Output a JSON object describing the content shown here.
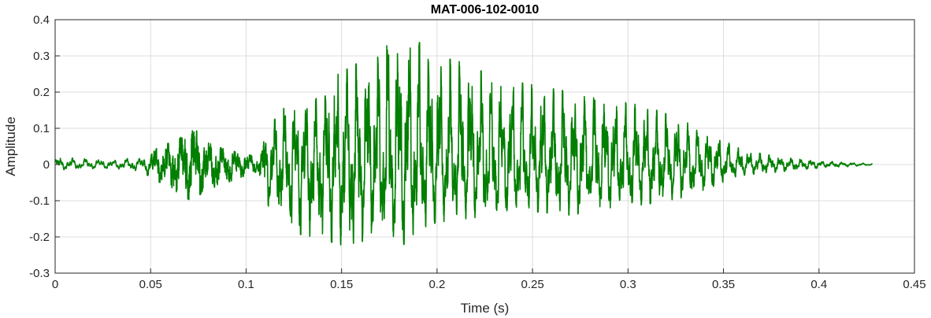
{
  "chart_data": {
    "type": "line",
    "title": "MAT-006-102-0010",
    "xlabel": "Time (s)",
    "ylabel": "Amplitude",
    "xlim": [
      0,
      0.45
    ],
    "ylim": [
      -0.3,
      0.4
    ],
    "xticks": [
      0,
      0.05,
      0.1,
      0.15,
      0.2,
      0.25,
      0.3,
      0.35,
      0.4,
      0.45
    ],
    "yticks": [
      -0.3,
      -0.2,
      -0.1,
      0,
      0.1,
      0.2,
      0.3,
      0.4
    ],
    "xtick_labels": [
      "0",
      "0.05",
      "0.1",
      "0.15",
      "0.2",
      "0.25",
      "0.3",
      "0.35",
      "0.4",
      "0.45"
    ],
    "ytick_labels": [
      "-0.3",
      "-0.2",
      "-0.1",
      "0",
      "0.1",
      "0.2",
      "0.3",
      "0.4"
    ],
    "grid": true,
    "line_color": "#007f00",
    "series": [
      {
        "name": "",
        "envelope": [
          {
            "t": 0.0,
            "max": 0.02,
            "min": -0.015
          },
          {
            "t": 0.03,
            "max": 0.012,
            "min": -0.01
          },
          {
            "t": 0.045,
            "max": 0.02,
            "min": -0.02
          },
          {
            "t": 0.055,
            "max": 0.05,
            "min": -0.05
          },
          {
            "t": 0.065,
            "max": 0.07,
            "min": -0.08
          },
          {
            "t": 0.071,
            "max": 0.11,
            "min": -0.1
          },
          {
            "t": 0.08,
            "max": 0.06,
            "min": -0.07
          },
          {
            "t": 0.09,
            "max": 0.04,
            "min": -0.05
          },
          {
            "t": 0.1,
            "max": 0.03,
            "min": -0.03
          },
          {
            "t": 0.106,
            "max": 0.02,
            "min": -0.02
          },
          {
            "t": 0.112,
            "max": 0.1,
            "min": -0.12
          },
          {
            "t": 0.118,
            "max": 0.15,
            "min": -0.15
          },
          {
            "t": 0.125,
            "max": 0.17,
            "min": -0.19
          },
          {
            "t": 0.135,
            "max": 0.18,
            "min": -0.2
          },
          {
            "t": 0.145,
            "max": 0.24,
            "min": -0.215
          },
          {
            "t": 0.155,
            "max": 0.27,
            "min": -0.23
          },
          {
            "t": 0.165,
            "max": 0.3,
            "min": -0.2
          },
          {
            "t": 0.175,
            "max": 0.36,
            "min": -0.2
          },
          {
            "t": 0.18,
            "max": 0.35,
            "min": -0.235
          },
          {
            "t": 0.19,
            "max": 0.34,
            "min": -0.18
          },
          {
            "t": 0.2,
            "max": 0.3,
            "min": -0.16
          },
          {
            "t": 0.215,
            "max": 0.28,
            "min": -0.15
          },
          {
            "t": 0.23,
            "max": 0.24,
            "min": -0.14
          },
          {
            "t": 0.25,
            "max": 0.22,
            "min": -0.13
          },
          {
            "t": 0.27,
            "max": 0.2,
            "min": -0.14
          },
          {
            "t": 0.29,
            "max": 0.18,
            "min": -0.12
          },
          {
            "t": 0.31,
            "max": 0.16,
            "min": -0.11
          },
          {
            "t": 0.33,
            "max": 0.12,
            "min": -0.09
          },
          {
            "t": 0.345,
            "max": 0.08,
            "min": -0.06
          },
          {
            "t": 0.36,
            "max": 0.04,
            "min": -0.03
          },
          {
            "t": 0.38,
            "max": 0.02,
            "min": -0.02
          },
          {
            "t": 0.4,
            "max": 0.01,
            "min": -0.01
          },
          {
            "t": 0.428,
            "max": 0.002,
            "min": -0.002
          }
        ]
      }
    ]
  }
}
